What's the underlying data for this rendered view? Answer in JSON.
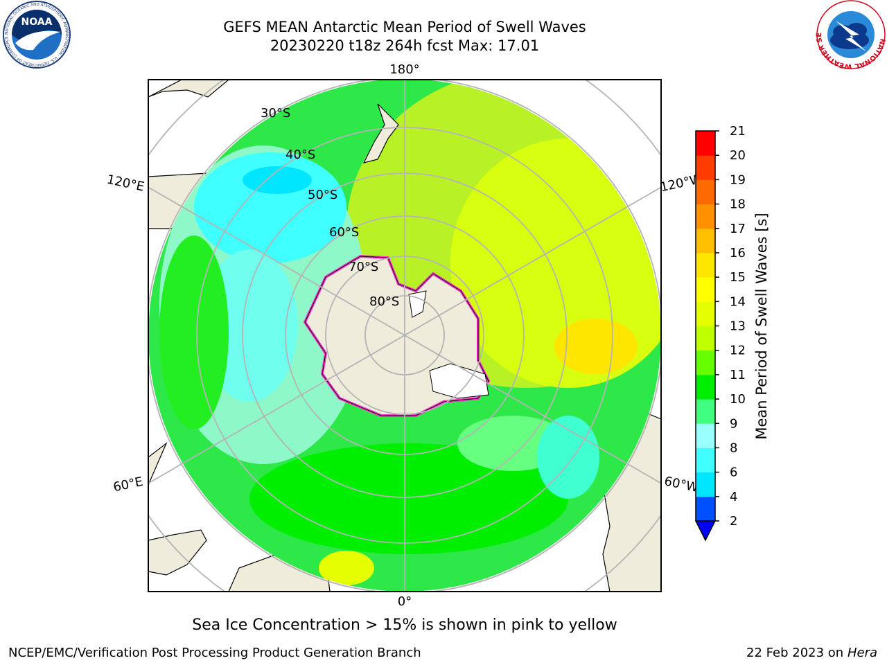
{
  "header": {
    "title_line1": "GEFS MEAN Antarctic Mean Period of Swell Waves",
    "title_line2": "20230220 t18z 264h fcst   Max: 17.01"
  },
  "logos": {
    "left": "NOAA",
    "left_ring_text": "NATIONAL OCEANIC AND ATMOSPHERIC ADMINISTRATION · U.S. DEPARTMENT OF COMMERCE",
    "right_ring_text": "NATIONAL WEATHER SERVICE"
  },
  "map": {
    "projection": "south-polar-stereographic",
    "lon_labels": {
      "top": "180°",
      "bottom": "0°",
      "left_upper": "120°E",
      "left_lower": "60°E",
      "right_upper": "120°W",
      "right_lower": "60°W"
    },
    "lat_labels": [
      "30°S",
      "40°S",
      "50°S",
      "60°S",
      "70°S",
      "80°S"
    ],
    "colors": {
      "land": "#efecdc",
      "ice_edge": "#ff33cc",
      "grid": "#b4b4b4"
    }
  },
  "colorbar": {
    "label": "Mean Period of Swell Waves [s]",
    "ticks": [
      "2",
      "4",
      "6",
      "8",
      "9",
      "10",
      "11",
      "12",
      "13",
      "14",
      "15",
      "16",
      "17",
      "18",
      "19",
      "20",
      "21"
    ],
    "colors": [
      "#0050ff",
      "#00e6ff",
      "#40ffff",
      "#99ffff",
      "#40ff80",
      "#00ee00",
      "#66ff00",
      "#c0ff00",
      "#e6ff00",
      "#ffff00",
      "#ffe600",
      "#ffc000",
      "#ff9000",
      "#ff6a00",
      "#ff3c00",
      "#ff0000"
    ],
    "under_color": "#0000ff"
  },
  "footer": {
    "note": "Sea Ice Concentration > 15% is shown in pink to yellow",
    "credit_left": "NCEP/EMC/Verification Post Processing Product Generation Branch",
    "credit_date": "22 Feb 2023 on",
    "credit_machine": "Hera"
  }
}
